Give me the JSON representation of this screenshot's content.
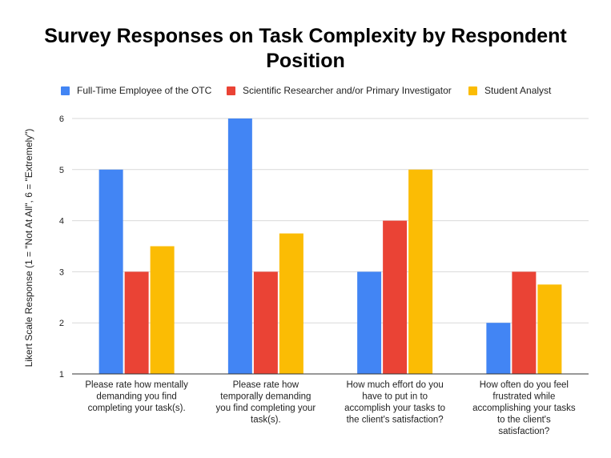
{
  "chart_data": {
    "type": "bar",
    "title_line1": "Survey Responses on Task Complexity by Respondent",
    "title_line2": "Position",
    "ylabel": "Likert Scale Response (1 = \"Not At All\", 6 = \"Extremely\")",
    "ylim": [
      1,
      6
    ],
    "yticks": [
      1,
      2,
      3,
      4,
      5,
      6
    ],
    "grid": true,
    "legend_position": "top",
    "categories": [
      [
        "Please rate how mentally",
        "demanding you find",
        "completing your task(s)."
      ],
      [
        "Please rate how",
        "temporally demanding",
        "you find completing your",
        "task(s)."
      ],
      [
        "How much effort do you",
        "have to put in to",
        "accomplish your tasks to",
        "the client's satisfaction?"
      ],
      [
        "How often do you feel",
        "frustrated while",
        "accomplishing your tasks",
        "to the client's",
        "satisfaction?"
      ]
    ],
    "series": [
      {
        "name": "Full-Time Employee of the OTC",
        "color": "#4285F4",
        "values": [
          5,
          6,
          3,
          2
        ]
      },
      {
        "name": "Scientific Researcher and/or Primary Investigator",
        "color": "#EA4335",
        "values": [
          3,
          3,
          4,
          3
        ]
      },
      {
        "name": "Student Analyst",
        "color": "#FBBC04",
        "values": [
          3.5,
          3.75,
          5,
          2.75
        ]
      }
    ]
  }
}
